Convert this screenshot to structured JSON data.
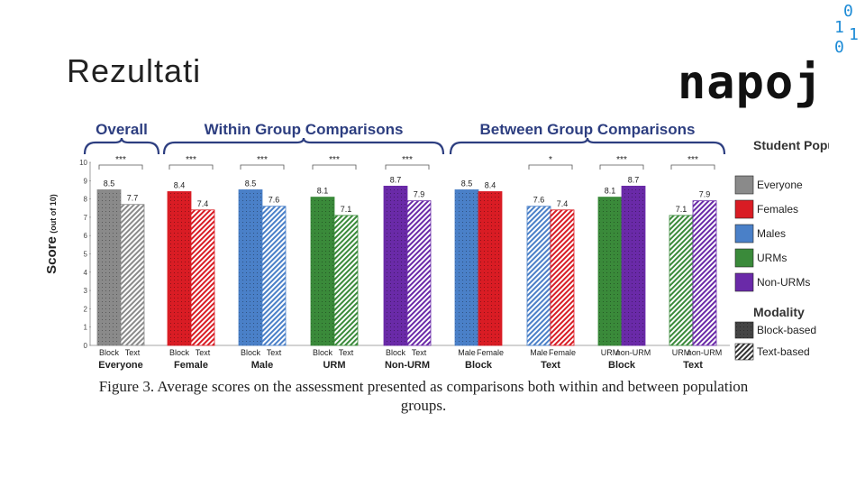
{
  "slide": {
    "title": "Rezultati",
    "logo_text": "napo",
    "logo_j": "j",
    "binary_digits": [
      "0",
      "1",
      "1",
      "0"
    ],
    "caption_line1": "Figure 3. Average scores on the assessment presented as comparisons both within and between population",
    "caption_line2": "groups."
  },
  "colors": {
    "Everyone": "#8a8a8a",
    "Females": "#d91c24",
    "Males": "#4a80c8",
    "URMs": "#3a8a3a",
    "Non-URMs": "#6a2aa8",
    "bracket": "#2d3e80"
  },
  "chart_data": {
    "type": "bar",
    "ylabel": "Score",
    "ylabel_suffix": "(out of 10)",
    "ylim": [
      0,
      10
    ],
    "yticks": [
      0,
      1,
      2,
      3,
      4,
      5,
      6,
      7,
      8,
      9,
      10
    ],
    "sections": [
      {
        "label": "Overall",
        "groups": [
          0
        ]
      },
      {
        "label": "Within Group Comparisons",
        "groups": [
          1,
          2,
          3,
          4
        ]
      },
      {
        "label": "Between Group Comparisons",
        "groups": [
          5,
          6,
          7,
          8
        ]
      }
    ],
    "groups": [
      {
        "name": "Everyone",
        "sig": "***",
        "bars": [
          {
            "label": "Block",
            "value": 8.5,
            "value_label": "8.5",
            "pop": "Everyone",
            "modality": "block"
          },
          {
            "label": "Text",
            "value": 7.7,
            "value_label": "7.7",
            "pop": "Everyone",
            "modality": "text"
          }
        ]
      },
      {
        "name": "Female",
        "sig": "***",
        "bars": [
          {
            "label": "Block",
            "value": 8.4,
            "value_label": "8.4",
            "pop": "Females",
            "modality": "block"
          },
          {
            "label": "Text",
            "value": 7.4,
            "value_label": "7.4",
            "pop": "Females",
            "modality": "text"
          }
        ]
      },
      {
        "name": "Male",
        "sig": "***",
        "bars": [
          {
            "label": "Block",
            "value": 8.5,
            "value_label": "8.5",
            "pop": "Males",
            "modality": "block"
          },
          {
            "label": "Text",
            "value": 7.6,
            "value_label": "7.6",
            "pop": "Males",
            "modality": "text"
          }
        ]
      },
      {
        "name": "URM",
        "sig": "***",
        "bars": [
          {
            "label": "Block",
            "value": 8.1,
            "value_label": "8.1",
            "pop": "URMs",
            "modality": "block"
          },
          {
            "label": "Text",
            "value": 7.1,
            "value_label": "7.1",
            "pop": "URMs",
            "modality": "text"
          }
        ]
      },
      {
        "name": "Non-URM",
        "sig": "***",
        "bars": [
          {
            "label": "Block",
            "value": 8.7,
            "value_label": "8.7",
            "pop": "Non-URMs",
            "modality": "block"
          },
          {
            "label": "Text",
            "value": 7.9,
            "value_label": "7.9",
            "pop": "Non-URMs",
            "modality": "text"
          }
        ]
      },
      {
        "name": "Block",
        "sig": "",
        "bars": [
          {
            "label": "Male",
            "value": 8.5,
            "value_label": "8.5",
            "pop": "Males",
            "modality": "block"
          },
          {
            "label": "Female",
            "value": 8.4,
            "value_label": "8.4",
            "pop": "Females",
            "modality": "block"
          }
        ]
      },
      {
        "name": "Text",
        "sig": "*",
        "bars": [
          {
            "label": "Male",
            "value": 7.6,
            "value_label": "7.6",
            "pop": "Males",
            "modality": "text"
          },
          {
            "label": "Female",
            "value": 7.4,
            "value_label": "7.4",
            "pop": "Females",
            "modality": "text"
          }
        ]
      },
      {
        "name": "Block",
        "sig": "***",
        "bars": [
          {
            "label": "URM",
            "value": 8.1,
            "value_label": "8.1",
            "pop": "URMs",
            "modality": "block"
          },
          {
            "label": "non-URM",
            "value": 8.7,
            "value_label": "8.7",
            "pop": "Non-URMs",
            "modality": "block"
          }
        ]
      },
      {
        "name": "Text",
        "sig": "***",
        "bars": [
          {
            "label": "URM",
            "value": 7.1,
            "value_label": "7.1",
            "pop": "URMs",
            "modality": "text"
          },
          {
            "label": "non-URM",
            "value": 7.9,
            "value_label": "7.9",
            "pop": "Non-URMs",
            "modality": "text"
          }
        ]
      }
    ],
    "legend": {
      "population_title": "Student Population",
      "population": [
        {
          "key": "Everyone",
          "label": "Everyone"
        },
        {
          "key": "Females",
          "label": "Females"
        },
        {
          "key": "Males",
          "label": "Males"
        },
        {
          "key": "URMs",
          "label": "URMs"
        },
        {
          "key": "Non-URMs",
          "label": "Non-URMs"
        }
      ],
      "modality_title": "Modality",
      "modality": [
        {
          "key": "block",
          "label": "Block-based"
        },
        {
          "key": "text",
          "label": "Text-based"
        }
      ]
    }
  }
}
